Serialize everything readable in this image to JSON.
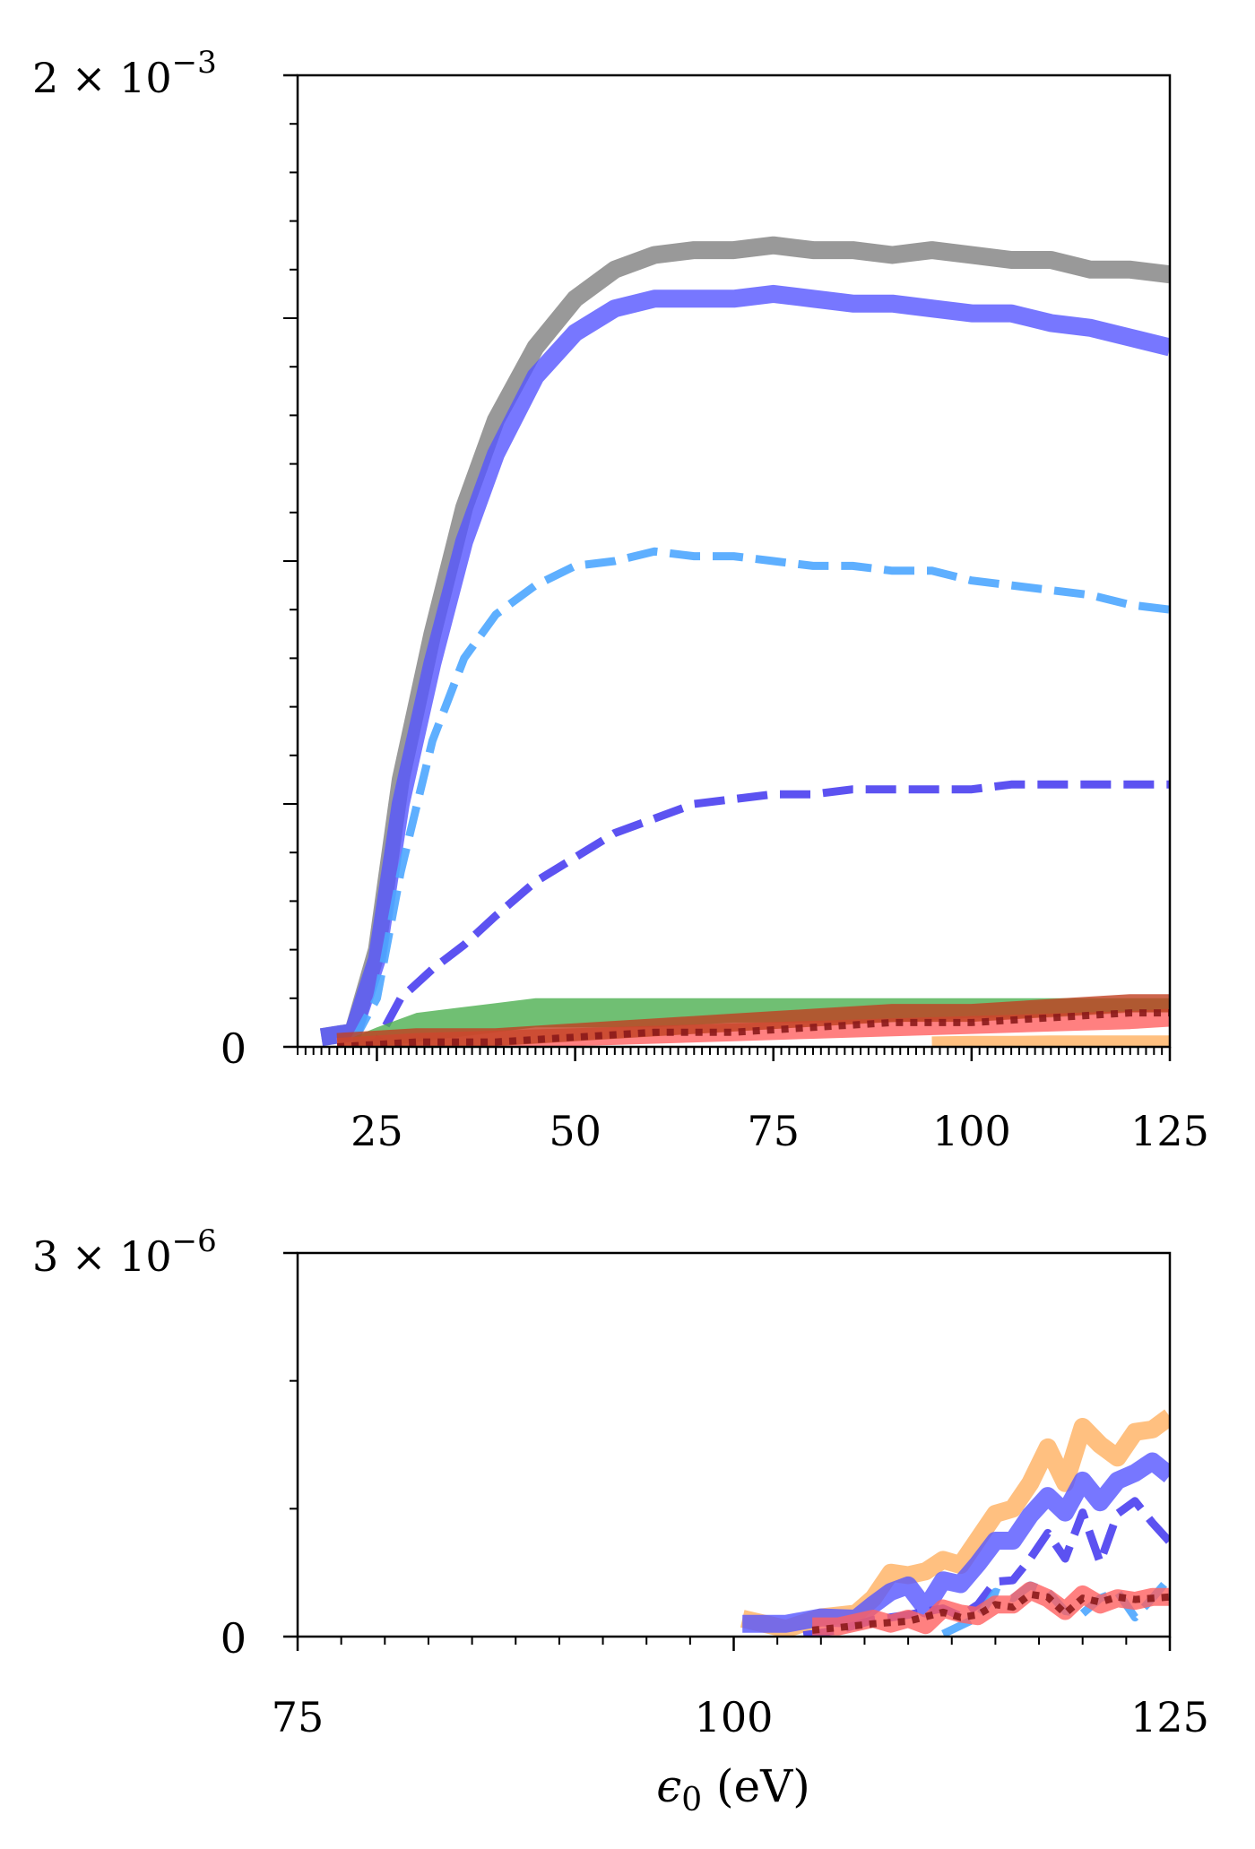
{
  "chart_data": [
    {
      "type": "line",
      "xlim": [
        15,
        125
      ],
      "ylim": [
        0,
        0.002
      ],
      "y_scale_label": "2 × 10",
      "y_scale_exp": "−3",
      "y_zero_label": "0",
      "xticks": [
        25,
        50,
        75,
        100,
        125
      ],
      "xticklabels": [
        "25",
        "50",
        "75",
        "100",
        "125"
      ],
      "grid": false,
      "series": [
        {
          "style": "solid-thick",
          "color": "#808080",
          "x": [
            18,
            22,
            25,
            28,
            32,
            36,
            40,
            45,
            50,
            55,
            60,
            65,
            70,
            75,
            80,
            85,
            90,
            95,
            100,
            105,
            110,
            115,
            120,
            125
          ],
          "y": [
            2e-05,
            3e-05,
            0.0002,
            0.00055,
            0.00085,
            0.00111,
            0.00129,
            0.00144,
            0.00154,
            0.0016,
            0.00163,
            0.00164,
            0.00164,
            0.00165,
            0.00164,
            0.00164,
            0.00163,
            0.00164,
            0.00163,
            0.00162,
            0.00162,
            0.0016,
            0.0016,
            0.00159
          ]
        },
        {
          "style": "solid-thick",
          "color": "#5555ff",
          "x": [
            18,
            22,
            25,
            28,
            32,
            36,
            40,
            45,
            50,
            55,
            60,
            65,
            70,
            75,
            80,
            85,
            90,
            95,
            100,
            105,
            110,
            115,
            120,
            125
          ],
          "y": [
            2e-05,
            3e-05,
            0.00018,
            0.0005,
            0.00079,
            0.00104,
            0.00122,
            0.00138,
            0.00147,
            0.00152,
            0.00154,
            0.00154,
            0.00154,
            0.00155,
            0.00154,
            0.00153,
            0.00153,
            0.00152,
            0.00151,
            0.00151,
            0.00149,
            0.00148,
            0.00146,
            0.00144
          ]
        },
        {
          "style": "dashed",
          "color": "#4da6ff",
          "x": [
            22,
            25,
            28,
            32,
            36,
            40,
            45,
            50,
            55,
            60,
            65,
            70,
            75,
            80,
            85,
            90,
            95,
            100,
            105,
            110,
            115,
            120,
            125
          ],
          "y": [
            1e-05,
            0.0001,
            0.00036,
            0.00063,
            0.0008,
            0.00089,
            0.00095,
            0.00099,
            0.001,
            0.00102,
            0.00101,
            0.00101,
            0.001,
            0.00099,
            0.00099,
            0.00098,
            0.00098,
            0.00096,
            0.00095,
            0.00094,
            0.00093,
            0.00091,
            0.0009
          ]
        },
        {
          "style": "dashed",
          "color": "#4a3ff0",
          "x": [
            22,
            25,
            28,
            32,
            36,
            40,
            45,
            50,
            55,
            60,
            65,
            70,
            75,
            80,
            85,
            90,
            95,
            100,
            105,
            110,
            115,
            120,
            125
          ],
          "y": [
            0.0,
            1e-05,
            0.0001,
            0.00016,
            0.00021,
            0.00027,
            0.00034,
            0.00039,
            0.00044,
            0.00047,
            0.0005,
            0.00051,
            0.00052,
            0.00052,
            0.00053,
            0.00053,
            0.00053,
            0.00053,
            0.00054,
            0.00054,
            0.00054,
            0.00054,
            0.00054
          ]
        },
        {
          "style": "band",
          "color": "#4caf50",
          "x": [
            22,
            25,
            30,
            35,
            40,
            45,
            50,
            60,
            70,
            80,
            90,
            100,
            110,
            120,
            125
          ],
          "y_low": [
            0.0,
            0.0,
            1e-05,
            2e-05,
            3e-05,
            4e-05,
            4e-05,
            4e-05,
            5e-05,
            5e-05,
            5e-05,
            6e-05,
            6e-05,
            7e-05,
            7e-05
          ],
          "y_high": [
            2e-05,
            4e-05,
            7e-05,
            8e-05,
            9e-05,
            0.0001,
            0.0001,
            0.0001,
            0.0001,
            0.0001,
            0.0001,
            0.0001,
            0.0001,
            0.0001,
            0.0001
          ]
        },
        {
          "style": "solid-thick",
          "color": "#ff6060",
          "x": [
            20,
            30,
            40,
            50,
            60,
            70,
            80,
            90,
            100,
            110,
            120,
            125
          ],
          "y": [
            0.0,
            1e-05,
            1.5e-05,
            2e-05,
            2.5e-05,
            3e-05,
            3.5e-05,
            4e-05,
            4.5e-05,
            5e-05,
            5.5e-05,
            6e-05
          ]
        },
        {
          "style": "solid-thick",
          "color": "#c04020",
          "x": [
            20,
            30,
            40,
            50,
            60,
            70,
            80,
            90,
            100,
            110,
            120,
            125
          ],
          "y": [
            1e-05,
            2e-05,
            2e-05,
            3e-05,
            4e-05,
            5e-05,
            6e-05,
            7e-05,
            7e-05,
            8e-05,
            9e-05,
            9e-05
          ]
        },
        {
          "style": "dotted",
          "color": "#8b1a1a",
          "x": [
            20,
            30,
            40,
            50,
            60,
            70,
            80,
            90,
            100,
            110,
            120,
            125
          ],
          "y": [
            0.0,
            1e-05,
            1e-05,
            2e-05,
            3e-05,
            3e-05,
            4e-05,
            5e-05,
            5e-05,
            6e-05,
            7e-05,
            7e-05
          ]
        },
        {
          "style": "solid-thick",
          "color": "#ffb060",
          "x": [
            95,
            100,
            105,
            110,
            115,
            120,
            125
          ],
          "y": [
            3e-06,
            4e-06,
            4e-06,
            5e-06,
            5e-06,
            5e-06,
            5e-06
          ]
        }
      ]
    },
    {
      "type": "line",
      "xlim": [
        75,
        125
      ],
      "ylim": [
        0,
        3e-06
      ],
      "y_scale_label": "3 × 10",
      "y_scale_exp": "−6",
      "y_zero_label": "0",
      "xticks": [
        75,
        100,
        125
      ],
      "xticklabels": [
        "75",
        "100",
        "125"
      ],
      "xlabel_symbol": "ϵ",
      "xlabel_sub": "0",
      "xlabel_unit": " (eV)",
      "grid": false,
      "series": [
        {
          "style": "solid-thick",
          "color": "#ffb060",
          "x": [
            100.5,
            103,
            105,
            107,
            108,
            109,
            110,
            111,
            112,
            113,
            114,
            115,
            116,
            117,
            118,
            119,
            120,
            121,
            122,
            123,
            124,
            125
          ],
          "y": [
            1.4e-07,
            6e-08,
            1.5e-07,
            1.8e-07,
            3e-07,
            5e-07,
            4.8e-07,
            5.1e-07,
            6e-07,
            5.6e-07,
            7.6e-07,
            9.6e-07,
            1e-06,
            1.2e-06,
            1.48e-06,
            1.2e-06,
            1.64e-06,
            1.5e-06,
            1.4e-06,
            1.6e-06,
            1.62e-06,
            1.72e-06
          ]
        },
        {
          "style": "solid-thick",
          "color": "#5555ff",
          "x": [
            100.5,
            103,
            105,
            107,
            108,
            109,
            110,
            111,
            112,
            113,
            114,
            115,
            116,
            117,
            118,
            119,
            120,
            121,
            122,
            123,
            124,
            125
          ],
          "y": [
            1e-07,
            1e-07,
            1.5e-07,
            1.4e-07,
            2.5e-07,
            3.5e-07,
            4e-07,
            2.2e-07,
            4.4e-07,
            4.1e-07,
            5.7e-07,
            7.5e-07,
            7.5e-07,
            9.5e-07,
            1.1e-06,
            9.7e-07,
            1.22e-06,
            1.05e-06,
            1.22e-06,
            1.28e-06,
            1.37e-06,
            1.26e-06
          ]
        },
        {
          "style": "dashed",
          "color": "#4a3ff0",
          "x": [
            104,
            106,
            108,
            110,
            112,
            113,
            114,
            115,
            116,
            117,
            118,
            119,
            120,
            121,
            122,
            123,
            124,
            125
          ],
          "y": [
            1e-08,
            5e-08,
            1.3e-07,
            1.7e-07,
            2.2e-07,
            1.6e-07,
            2.5e-07,
            4.3e-07,
            4.4e-07,
            6.1e-07,
            8.1e-07,
            6.1e-07,
            9.7e-07,
            5.8e-07,
            9.6e-07,
            1.06e-06,
            8.9e-07,
            7.4e-07
          ]
        },
        {
          "style": "dashed",
          "color": "#4da6ff",
          "x": [
            112,
            114,
            115,
            116,
            117,
            118,
            119,
            120,
            121,
            122,
            123,
            124,
            125
          ],
          "y": [
            2e-08,
            1.5e-07,
            3.5e-07,
            3e-07,
            4e-07,
            3.5e-07,
            2e-07,
            1.8e-07,
            3e-07,
            3.5e-07,
            1.5e-07,
            3e-07,
            4.6e-07
          ]
        },
        {
          "style": "solid-thick",
          "color": "#ff6060",
          "x": [
            104.5,
            106,
            108,
            109,
            110,
            111,
            112,
            113,
            114,
            115,
            116,
            117,
            118,
            119,
            120,
            121,
            122,
            123,
            124,
            125
          ],
          "y": [
            8e-08,
            8e-08,
            1.4e-07,
            1e-07,
            1.4e-07,
            9e-08,
            2.2e-07,
            1.8e-07,
            1.6e-07,
            2.5e-07,
            2.5e-07,
            3.6e-07,
            3e-07,
            2e-07,
            3.3e-07,
            2.5e-07,
            3e-07,
            2.8e-07,
            3.1e-07,
            3.1e-07
          ]
        },
        {
          "style": "dotted",
          "color": "#8b1a1a",
          "x": [
            104.5,
            106,
            108,
            110,
            112,
            113,
            114,
            115,
            116,
            117,
            118,
            119,
            120,
            121,
            122,
            123,
            124,
            125
          ],
          "y": [
            5e-08,
            7e-08,
            1e-07,
            1.2e-07,
            1.9e-07,
            1.5e-07,
            1.7e-07,
            2.5e-07,
            2.3e-07,
            3.3e-07,
            3.1e-07,
            1.8e-07,
            3e-07,
            2.7e-07,
            3.1e-07,
            2.9e-07,
            3e-07,
            3.1e-07
          ]
        }
      ]
    }
  ]
}
